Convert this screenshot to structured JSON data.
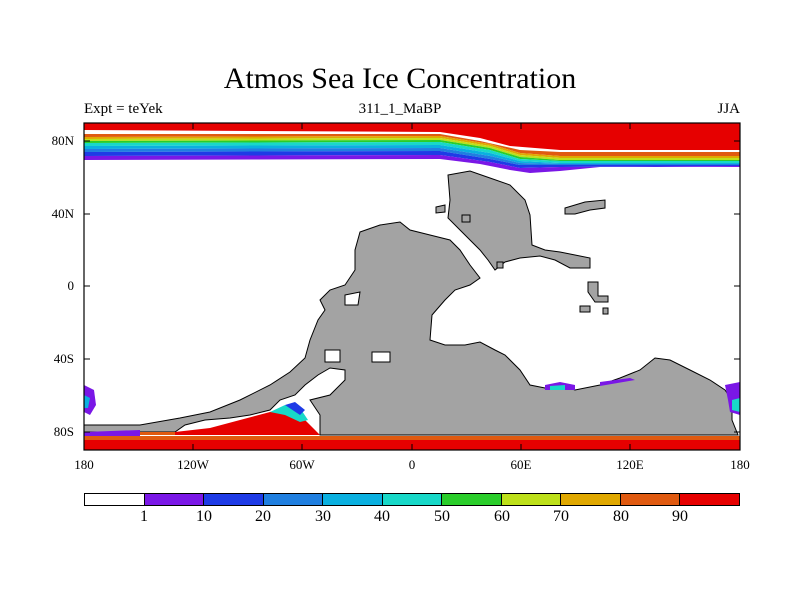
{
  "title": "Atmos Sea Ice Concentration",
  "subtitle": {
    "left": "Expt = teYek",
    "center": "311_1_MaBP",
    "right": "JJA"
  },
  "axes": {
    "y_ticks": [
      "80N",
      "40N",
      "0",
      "40S",
      "80S"
    ],
    "x_ticks": [
      "180",
      "120W",
      "60W",
      "0",
      "60E",
      "120E",
      "180"
    ]
  },
  "colorbar": {
    "colors": [
      "#ffffff",
      "#7a17e6",
      "#1e3be6",
      "#1f7fe0",
      "#0ab0e0",
      "#18d8c8",
      "#2acd2a",
      "#bde01a",
      "#e0a800",
      "#e05a10",
      "#e60000"
    ],
    "labels": [
      "1",
      "10",
      "20",
      "30",
      "40",
      "50",
      "60",
      "70",
      "80",
      "90"
    ]
  },
  "map_colors": {
    "land": "#a3a3a3",
    "ocean": "#ffffff",
    "outline": "#000000"
  }
}
